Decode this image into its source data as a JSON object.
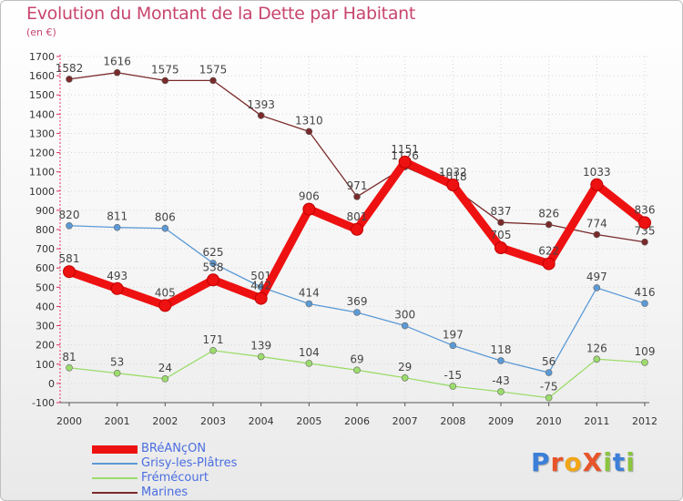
{
  "title": "Evolution du Montant de la Dette par Habitant",
  "subtitle": "(en €)",
  "colors": {
    "title": "#c8456d",
    "legend_text": "#4a6ee0"
  },
  "logo": {
    "text": "ProXiti",
    "letter_colors": [
      "#3b7fd9",
      "#e8542a",
      "#f2a516",
      "#e8542a",
      "#8bc43f",
      "#3b7fd9",
      "#8bc43f"
    ]
  },
  "chart_data": {
    "type": "line",
    "x": [
      "2000",
      "2001",
      "2002",
      "2003",
      "2004",
      "2005",
      "2006",
      "2007",
      "2008",
      "2009",
      "2010",
      "2011",
      "2012"
    ],
    "ylim": [
      -100,
      1700
    ],
    "yticks": [
      "-100",
      "0",
      "100",
      "200",
      "300",
      "400",
      "500",
      "600",
      "700",
      "800",
      "900",
      "1000",
      "1100",
      "1200",
      "1300",
      "1400",
      "1500",
      "1600",
      "1700"
    ],
    "grid": true,
    "legend_position": "bottom-left",
    "series": [
      {
        "name": "Marines",
        "color": "#7a2a2a",
        "values": [
          1582,
          1616,
          1575,
          1575,
          1393,
          1310,
          971,
          1126,
          1018,
          837,
          826,
          774,
          735
        ],
        "labels": [
          "1582",
          "1616",
          "1575",
          "1575",
          "1393",
          "1310",
          "971",
          "1126",
          "1018",
          "837",
          "826",
          "774",
          "735"
        ]
      },
      {
        "name": "Grisy-les-Plâtres",
        "color": "#5b9ad6",
        "values": [
          820,
          811,
          806,
          625,
          501,
          414,
          369,
          300,
          197,
          118,
          56,
          497,
          416
        ],
        "labels": [
          "820",
          "811",
          "806",
          "625",
          "501",
          "414",
          "369",
          "300",
          "197",
          "118",
          "56",
          "497",
          "416"
        ]
      },
      {
        "name": "Frémécourt",
        "color": "#9cdc6c",
        "values": [
          81,
          53,
          24,
          171,
          139,
          104,
          69,
          29,
          -15,
          -43,
          -75,
          126,
          109
        ],
        "labels": [
          "81",
          "53",
          "24",
          "171",
          "139",
          "104",
          "69",
          "29",
          "-15",
          "-43",
          "-75",
          "126",
          "109"
        ]
      },
      {
        "name": "BRéANçON",
        "color": "#ee1111",
        "values": [
          581,
          493,
          405,
          538,
          442,
          906,
          801,
          1151,
          1032,
          705,
          622,
          1033,
          836
        ],
        "labels": [
          "581",
          "493",
          "405",
          "538",
          "442",
          "906",
          "801",
          "1151",
          "1032",
          "705",
          "622",
          "1033",
          "836"
        ]
      }
    ]
  },
  "legend": [
    {
      "label": "BRéANçON",
      "color": "#ee1111",
      "thick": true
    },
    {
      "label": "Grisy-les-Plâtres",
      "color": "#5b9ad6",
      "thick": false
    },
    {
      "label": "Frémécourt",
      "color": "#9cdc6c",
      "thick": false
    },
    {
      "label": "Marines",
      "color": "#7a2a2a",
      "thick": false
    }
  ]
}
